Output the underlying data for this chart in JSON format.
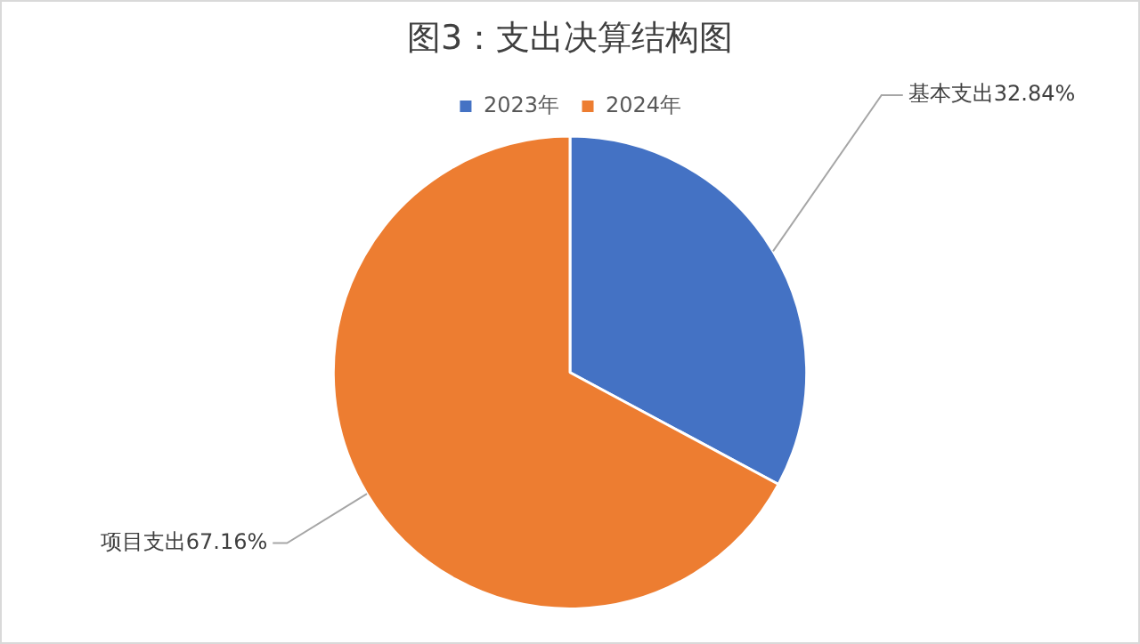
{
  "chart_data": {
    "type": "pie",
    "title": "图3：支出决算结构图",
    "categories": [
      "2023年",
      "2024年"
    ],
    "values": [
      32.84,
      67.16
    ],
    "colors": [
      "#4472c4",
      "#ed7d31"
    ],
    "value_labels": [
      "基本支出32.84%",
      "项目支出67.16%"
    ],
    "legend": "top"
  }
}
